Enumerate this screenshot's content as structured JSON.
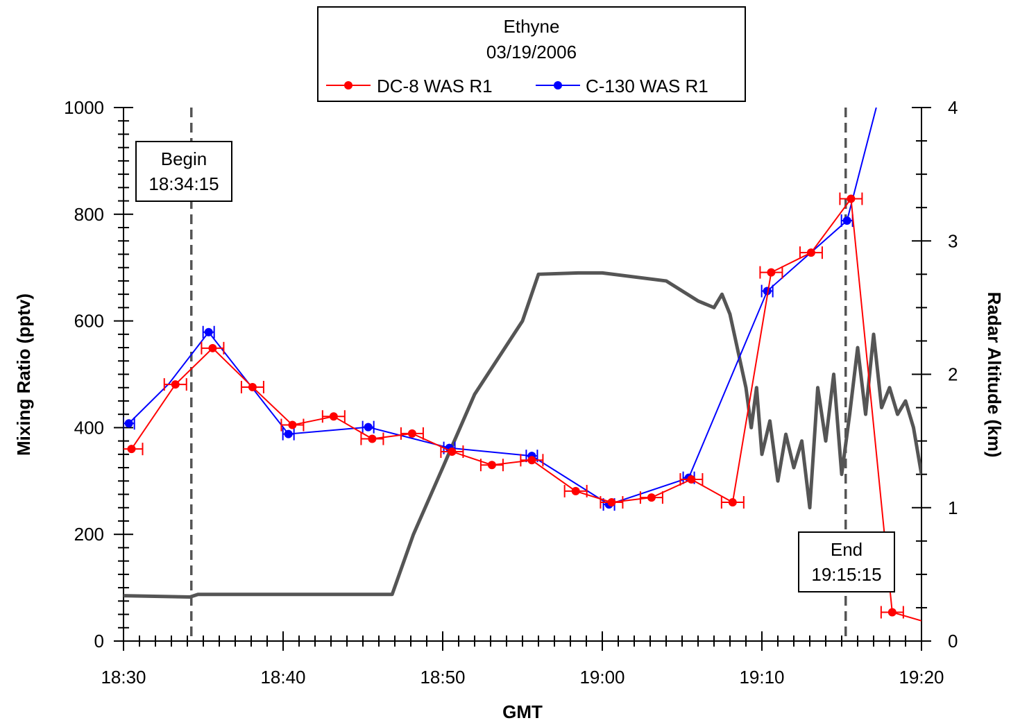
{
  "chart_data": {
    "type": "line",
    "title": "Ethyne",
    "subtitle": "03/19/2006",
    "xlabel": "GMT",
    "ylabel": "Mixing Ratio (pptv)",
    "y2label": "Radar Altitude  (km)",
    "x_ticks": [
      "18:30",
      "18:40",
      "18:50",
      "19:00",
      "19:10",
      "19:20"
    ],
    "y_ticks": [
      "0",
      "200",
      "400",
      "600",
      "800",
      "1000"
    ],
    "y2_ticks": [
      "0",
      "1",
      "2",
      "3",
      "4"
    ],
    "xlim": [
      "18:30",
      "19:20"
    ],
    "ylim": [
      0,
      1000
    ],
    "y2lim": [
      0,
      4
    ],
    "grid": false,
    "legend_placement": "top-center",
    "series": [
      {
        "name": "DC-8 WAS R1",
        "color": "#ff0000",
        "x": [
          "18:30:30",
          "18:33:15",
          "18:35:35",
          "18:38:05",
          "18:40:35",
          "18:43:10",
          "18:45:35",
          "18:48:05",
          "18:50:35",
          "18:53:05",
          "18:55:35",
          "18:58:20",
          "19:00:35",
          "19:03:05",
          "19:05:35",
          "19:08:10",
          "19:10:35",
          "19:13:05",
          "19:15:35",
          "19:18:10",
          "19:20:00"
        ],
        "y": [
          360,
          481,
          549,
          476,
          405,
          421,
          379,
          389,
          355,
          330,
          339,
          281,
          260,
          269,
          303,
          260,
          691,
          728,
          829,
          54,
          38
        ],
        "xerr_min": 0.6
      },
      {
        "name": "C-130 WAS R1",
        "color": "#0000ff",
        "x": [
          "18:30:20",
          "18:32:50",
          "18:35:20",
          "18:40:20",
          "18:45:20",
          "18:50:25",
          "18:55:35",
          "19:00:25",
          "19:05:25",
          "19:10:20",
          "19:15:20",
          "19:17:10"
        ],
        "y": [
          408,
          482,
          579,
          388,
          401,
          362,
          347,
          256,
          306,
          656,
          788,
          1000
        ],
        "marker_idx": [
          0,
          2,
          3,
          4,
          5,
          6,
          7,
          8,
          9,
          10
        ]
      },
      {
        "name": "Radar Altitude",
        "color": "#555555",
        "axis": "right",
        "x": [
          "18:30:00",
          "18:34:10",
          "18:34:40",
          "18:46:50",
          "18:48:10",
          "18:50:00",
          "18:52:00",
          "18:55:00",
          "18:56:00",
          "18:58:30",
          "19:00:00",
          "19:04:00",
          "19:06:00",
          "19:07:00",
          "19:07:30",
          "19:08:00",
          "19:09:00",
          "19:09:20",
          "19:09:40",
          "19:10:00",
          "19:10:30",
          "19:11:00",
          "19:11:30",
          "19:12:00",
          "19:12:30",
          "19:13:00",
          "19:13:30",
          "19:14:00",
          "19:14:30",
          "19:15:00",
          "19:15:30",
          "19:16:00",
          "19:16:30",
          "19:17:00",
          "19:17:30",
          "19:18:00",
          "19:18:30",
          "19:19:00",
          "19:19:30",
          "19:20:00"
        ],
        "y": [
          0.34,
          0.33,
          0.35,
          0.35,
          0.8,
          1.3,
          1.85,
          2.4,
          2.75,
          2.76,
          2.76,
          2.7,
          2.55,
          2.5,
          2.6,
          2.45,
          1.9,
          1.6,
          1.9,
          1.4,
          1.65,
          1.2,
          1.55,
          1.3,
          1.5,
          1.0,
          1.9,
          1.5,
          2.0,
          1.25,
          1.7,
          2.2,
          1.7,
          2.3,
          1.75,
          1.9,
          1.7,
          1.8,
          1.6,
          1.25
        ]
      }
    ],
    "annotations": [
      {
        "line1": "Begin",
        "line2": "18:34:15",
        "x": "18:34:15"
      },
      {
        "line1": "End",
        "line2": "19:15:15",
        "x": "19:15:15"
      }
    ]
  }
}
